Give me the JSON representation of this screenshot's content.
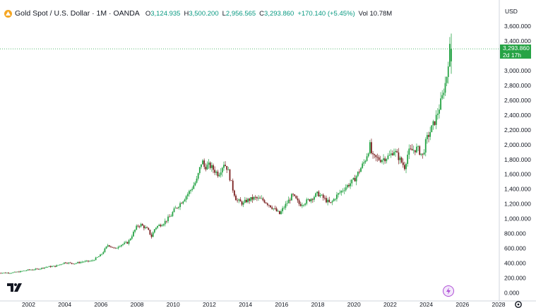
{
  "header": {
    "title": "Gold Spot / U.S. Dollar · 1M · OANDA",
    "open_label": "O",
    "open_value": "3,124.935",
    "high_label": "H",
    "high_value": "3,500.200",
    "low_label": "L",
    "low_value": "2,956.565",
    "close_label": "C",
    "close_value": "3,293.860",
    "change": "+170.140 (+5.45%)",
    "volume_label": "Vol",
    "volume_value": "10.78M",
    "icon": "gold-coin-icon"
  },
  "price_scale": {
    "currency": "USD",
    "current_price": "3,293.860",
    "countdown": "2d 17h"
  },
  "colors": {
    "up": "#089981",
    "down": "#f23645",
    "candle_up": "#26a345",
    "candle_down": "#7a1f1f",
    "price_label_bg": "#26a345",
    "symbol_icon": "#f5a623",
    "bolt": "#b04fd6"
  },
  "icons": {
    "logo": "tradingview-logo-icon",
    "bolt": "lightning-bolt-icon",
    "settings": "settings-gear-icon"
  },
  "chart_data": {
    "type": "candlestick",
    "title": "Gold Spot / U.S. Dollar · 1M · OANDA",
    "xlabel": "",
    "ylabel": "",
    "ylim": [
      -100,
      3800
    ],
    "xlim": [
      2000.3,
      2028.0
    ],
    "y_ticks": [
      0,
      200,
      400,
      600,
      800,
      1000,
      1200,
      1400,
      1600,
      1800,
      2000,
      2200,
      2400,
      2600,
      2800,
      3000,
      3200,
      3400,
      3600
    ],
    "y_tick_labels": [
      "0.000",
      "200.000",
      "400.000",
      "600.000",
      "800.000",
      "1,000.000",
      "1,200.000",
      "1,400.000",
      "1,600.000",
      "1,800.000",
      "2,000.000",
      "2,200.000",
      "2,400.000",
      "2,600.000",
      "2,800.000",
      "3,000.000",
      "3,200.000",
      "3,400.000",
      "3,600.000"
    ],
    "x_ticks": [
      2002,
      2004,
      2006,
      2008,
      2010,
      2012,
      2014,
      2016,
      2018,
      2020,
      2022,
      2024,
      2026,
      2028
    ],
    "x_tick_labels": [
      "2002",
      "2004",
      "2006",
      "2008",
      "2010",
      "2012",
      "2014",
      "2016",
      "2018",
      "2020",
      "2022",
      "2024",
      "2026",
      "2028"
    ],
    "last_price": 3293.86,
    "grid": false,
    "series": [
      {
        "x": [
          2000.3,
          2001.0,
          2001.5,
          2002.0,
          2002.5,
          2003.0,
          2003.5,
          2004.0,
          2004.5,
          2005.0,
          2005.5,
          2006.0,
          2006.4,
          2006.8,
          2007.0,
          2007.5,
          2008.0,
          2008.2,
          2008.6,
          2008.8,
          2009.0,
          2009.5,
          2009.9,
          2010.0,
          2010.5,
          2011.0,
          2011.3,
          2011.6,
          2011.7,
          2012.0,
          2012.5,
          2012.8,
          2013.0,
          2013.3,
          2013.5,
          2013.9,
          2014.0,
          2014.5,
          2015.0,
          2015.5,
          2015.9,
          2016.0,
          2016.6,
          2017.0,
          2017.5,
          2018.0,
          2018.7,
          2019.0,
          2019.5,
          2019.9,
          2020.0,
          2020.6,
          2020.9,
          2021.0,
          2021.5,
          2022.0,
          2022.2,
          2022.8,
          2023.0,
          2023.5,
          2023.8,
          2024.0,
          2024.5,
          2024.9,
          2025.0,
          2025.1,
          2025.2,
          2025.3
        ],
        "close": [
          270,
          270,
          285,
          310,
          320,
          350,
          360,
          410,
          395,
          420,
          430,
          510,
          650,
          590,
          640,
          680,
          900,
          920,
          850,
          760,
          880,
          950,
          1050,
          1100,
          1240,
          1400,
          1520,
          1800,
          1700,
          1720,
          1600,
          1750,
          1680,
          1400,
          1250,
          1200,
          1240,
          1280,
          1250,
          1150,
          1060,
          1110,
          1320,
          1190,
          1250,
          1340,
          1200,
          1300,
          1420,
          1500,
          1520,
          1780,
          2000,
          1830,
          1800,
          1850,
          1930,
          1700,
          1900,
          1950,
          1850,
          2060,
          2330,
          2650,
          2800,
          2850,
          3100,
          3293.86
        ]
      }
    ]
  }
}
